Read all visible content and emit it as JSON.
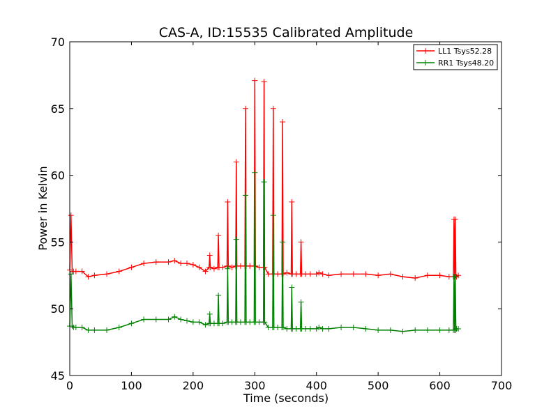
{
  "chart_data": {
    "type": "line",
    "title": "CAS-A, ID:15535 Calibrated Amplitude",
    "xlabel": "Time (seconds)",
    "ylabel": "Power in Kelvin",
    "xlim": [
      0,
      700
    ],
    "ylim": [
      45,
      70
    ],
    "x_ticks": [
      0,
      100,
      200,
      300,
      400,
      500,
      600,
      700
    ],
    "y_ticks": [
      45,
      50,
      55,
      60,
      65,
      70
    ],
    "grid": false,
    "legend_position": "top-right",
    "marker": "+",
    "series": [
      {
        "name": "LL1 Tsys52.28",
        "color": "#ff0000",
        "x": [
          0,
          2,
          4,
          6,
          10,
          20,
          30,
          40,
          60,
          80,
          100,
          120,
          140,
          160,
          170,
          180,
          190,
          200,
          210,
          220,
          226,
          227,
          228,
          234,
          240,
          241,
          242,
          248,
          255,
          256,
          257,
          263,
          269,
          270,
          271,
          277,
          284,
          285,
          286,
          292,
          299,
          300,
          301,
          307,
          314,
          315,
          316,
          322,
          329,
          330,
          331,
          337,
          344,
          345,
          346,
          352,
          359,
          360,
          361,
          367,
          374,
          375,
          376,
          382,
          390,
          400,
          404,
          410,
          420,
          440,
          460,
          480,
          500,
          520,
          540,
          560,
          580,
          600,
          615,
          622,
          623,
          624,
          625,
          626,
          627,
          630
        ],
        "values": [
          52.9,
          57.0,
          52.8,
          52.8,
          52.8,
          52.8,
          52.4,
          52.5,
          52.6,
          52.8,
          53.1,
          53.4,
          53.5,
          53.5,
          53.6,
          53.4,
          53.4,
          53.3,
          53.1,
          52.8,
          53.1,
          54.0,
          53.1,
          53.0,
          53.1,
          55.5,
          53.1,
          53.1,
          53.2,
          58.0,
          53.2,
          53.1,
          53.2,
          61.0,
          53.2,
          53.2,
          53.2,
          65.0,
          53.2,
          53.2,
          53.2,
          67.1,
          53.2,
          53.1,
          53.1,
          67.0,
          53.1,
          52.6,
          52.6,
          65.0,
          52.6,
          52.6,
          52.6,
          64.0,
          52.6,
          52.7,
          52.6,
          58.0,
          52.6,
          52.6,
          52.6,
          55.0,
          52.6,
          52.6,
          52.6,
          52.6,
          52.7,
          52.6,
          52.5,
          52.6,
          52.6,
          52.6,
          52.5,
          52.6,
          52.4,
          52.3,
          52.5,
          52.5,
          52.4,
          52.4,
          56.7,
          52.4,
          56.7,
          52.5,
          52.4,
          52.5
        ]
      },
      {
        "name": "RR1 Tsys48.20",
        "color": "#008000",
        "x": [
          0,
          2,
          4,
          6,
          10,
          20,
          30,
          40,
          60,
          80,
          100,
          120,
          140,
          160,
          170,
          180,
          190,
          200,
          210,
          220,
          226,
          227,
          228,
          234,
          240,
          241,
          242,
          248,
          255,
          256,
          257,
          263,
          269,
          270,
          271,
          277,
          284,
          285,
          286,
          292,
          299,
          300,
          301,
          307,
          314,
          315,
          316,
          322,
          329,
          330,
          331,
          337,
          344,
          345,
          346,
          352,
          359,
          360,
          361,
          367,
          374,
          375,
          376,
          382,
          390,
          400,
          404,
          410,
          420,
          440,
          460,
          480,
          500,
          520,
          540,
          560,
          580,
          600,
          615,
          622,
          623,
          624,
          625,
          626,
          627,
          630
        ],
        "values": [
          48.7,
          52.6,
          48.7,
          48.6,
          48.6,
          48.6,
          48.4,
          48.4,
          48.4,
          48.6,
          48.9,
          49.2,
          49.2,
          49.2,
          49.4,
          49.2,
          49.1,
          49.0,
          49.0,
          48.8,
          48.9,
          49.6,
          48.9,
          48.9,
          48.9,
          51.0,
          48.9,
          48.9,
          49.0,
          53.0,
          49.0,
          49.0,
          49.0,
          55.2,
          49.0,
          49.0,
          49.0,
          58.5,
          49.0,
          49.0,
          49.0,
          60.2,
          49.0,
          49.0,
          49.0,
          59.5,
          49.0,
          48.6,
          48.6,
          57.0,
          48.6,
          48.6,
          48.6,
          55.0,
          48.6,
          48.5,
          48.5,
          51.6,
          48.5,
          48.5,
          48.5,
          50.5,
          48.5,
          48.5,
          48.5,
          48.5,
          48.6,
          48.5,
          48.5,
          48.6,
          48.6,
          48.5,
          48.4,
          48.4,
          48.3,
          48.4,
          48.4,
          48.4,
          48.4,
          48.4,
          52.4,
          48.4,
          52.4,
          48.4,
          48.5,
          48.5
        ]
      }
    ]
  }
}
